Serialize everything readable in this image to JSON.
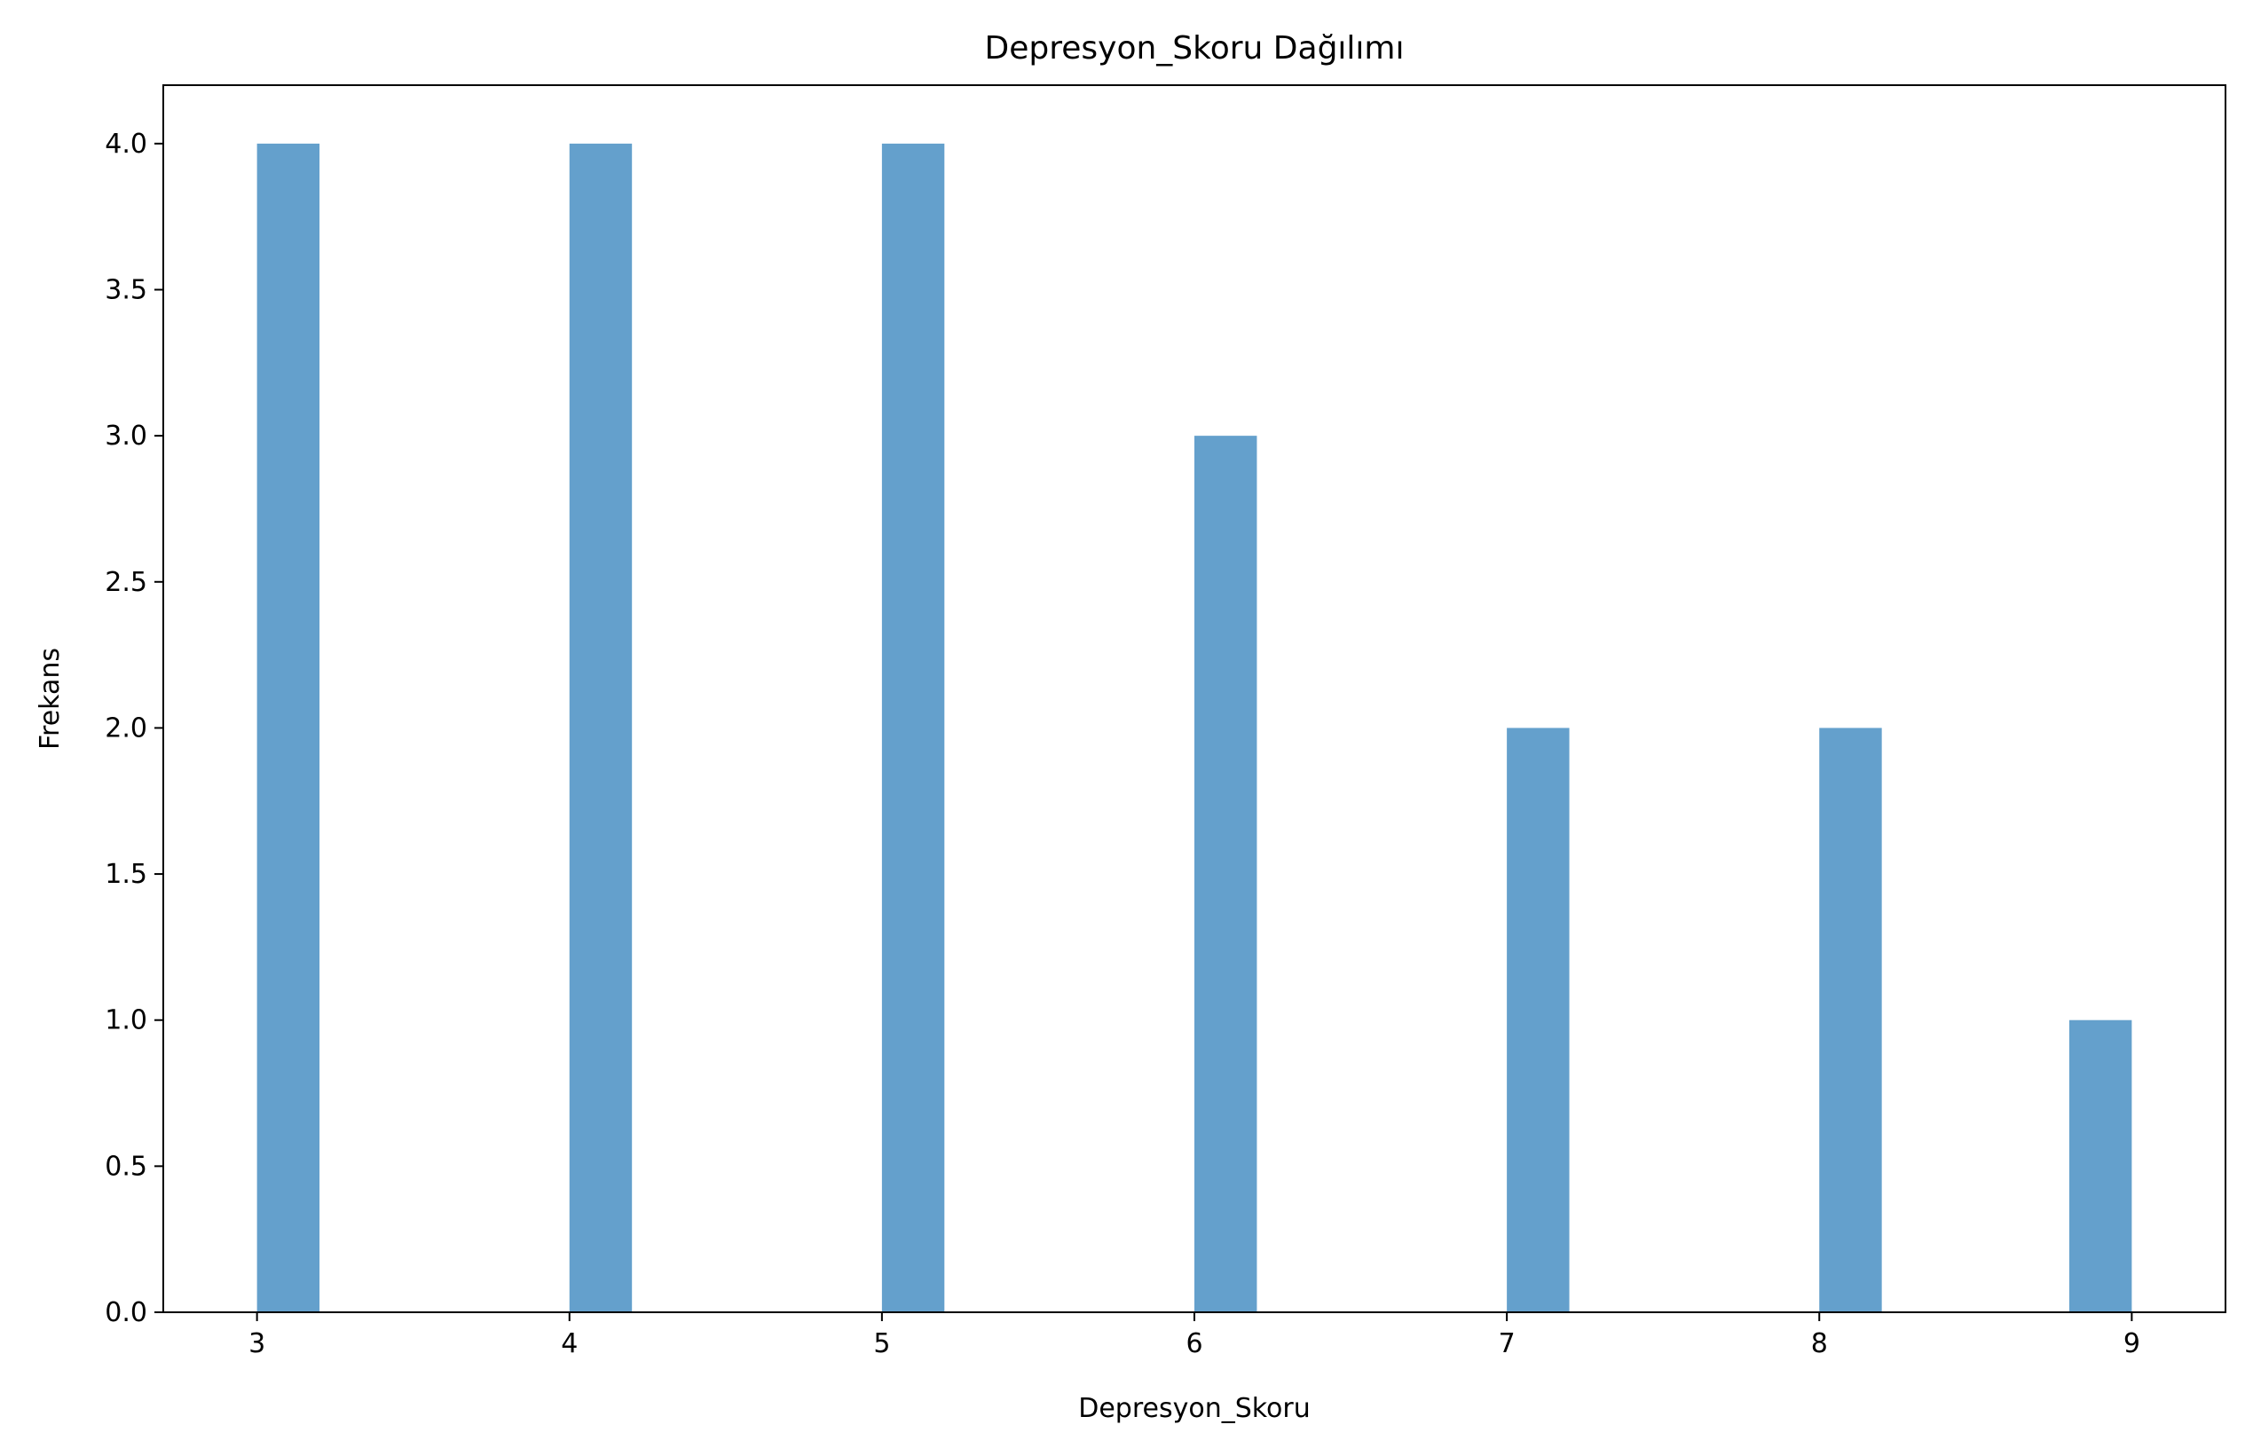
{
  "chart_data": {
    "type": "bar",
    "title": "Depresyon_Skoru Dağılımı",
    "xlabel": "Depresyon_Skoru",
    "ylabel": "Frekans",
    "bar_color": "#64a0cc",
    "xlim": [
      2.7,
      9.3
    ],
    "ylim": [
      0,
      4.2
    ],
    "x_ticks": [
      3,
      4,
      5,
      6,
      7,
      8,
      9
    ],
    "x_tick_labels": [
      "3",
      "4",
      "5",
      "6",
      "7",
      "8",
      "9"
    ],
    "y_ticks": [
      0,
      0.5,
      1,
      1.5,
      2,
      2.5,
      3,
      3.5,
      4
    ],
    "y_tick_labels": [
      "0.0",
      "0.5",
      "1.0",
      "1.5",
      "2.0",
      "2.5",
      "3.0",
      "3.5",
      "4.0"
    ],
    "bins": [
      {
        "start": 3.0,
        "end": 3.2,
        "count": 4
      },
      {
        "start": 4.0,
        "end": 4.2,
        "count": 4
      },
      {
        "start": 5.0,
        "end": 5.2,
        "count": 4
      },
      {
        "start": 6.0,
        "end": 6.2,
        "count": 3
      },
      {
        "start": 7.0,
        "end": 7.2,
        "count": 2
      },
      {
        "start": 8.0,
        "end": 8.2,
        "count": 2
      },
      {
        "start": 8.8,
        "end": 9.0,
        "count": 1
      }
    ],
    "grid": false,
    "legend": "none"
  }
}
